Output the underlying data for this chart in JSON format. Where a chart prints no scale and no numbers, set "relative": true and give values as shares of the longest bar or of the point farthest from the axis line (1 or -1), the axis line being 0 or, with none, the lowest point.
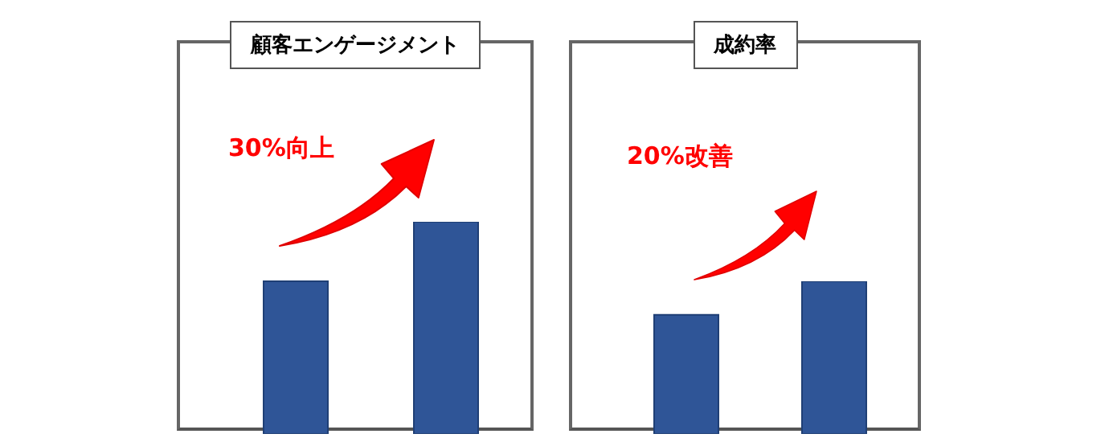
{
  "chart_data": [
    {
      "type": "bar",
      "title": "顧客エンゲージメント",
      "categories": [
        null,
        null
      ],
      "values": [
        0.72,
        1
      ],
      "color": "#2f5597",
      "relative": true,
      "annotations": [
        "30%向上"
      ]
    },
    {
      "type": "bar",
      "title": "成約率",
      "categories": [
        null,
        null
      ],
      "values": [
        0.78,
        1
      ],
      "color": "#2f5597",
      "relative": true,
      "annotations": [
        "20%改善"
      ]
    }
  ]
}
